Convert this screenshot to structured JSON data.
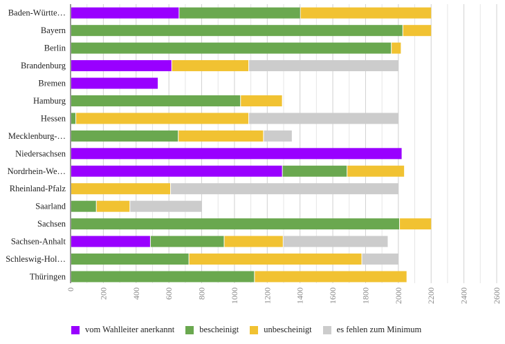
{
  "chart_data": {
    "type": "bar",
    "orientation": "horizontal",
    "stacked": true,
    "categories": [
      "Baden-Württe…",
      "Bayern",
      "Berlin",
      "Brandenburg",
      "Bremen",
      "Hamburg",
      "Hessen",
      "Mecklenburg-…",
      "Niedersachsen",
      "Nordrhein-We…",
      "Rheinland-Pfalz",
      "Saarland",
      "Sachsen",
      "Sachsen-Anhalt",
      "Schleswig-Hol…",
      "Thüringen"
    ],
    "series": [
      {
        "name": "vom Wahlleiter anerkannt",
        "color": "#9900ff",
        "values": [
          660,
          0,
          0,
          615,
          532,
          0,
          0,
          0,
          2020,
          1290,
          0,
          0,
          0,
          485,
          0,
          0
        ]
      },
      {
        "name": "bescheinigt",
        "color": "#6aa84f",
        "values": [
          740,
          2025,
          1955,
          0,
          0,
          1035,
          30,
          655,
          0,
          395,
          0,
          155,
          2005,
          450,
          720,
          1120
        ]
      },
      {
        "name": "unbescheinigt",
        "color": "#f1c232",
        "values": [
          800,
          175,
          60,
          470,
          0,
          255,
          1055,
          520,
          0,
          350,
          608,
          205,
          195,
          360,
          1055,
          930
        ]
      },
      {
        "name": "es fehlen zum Minimum",
        "color": "#cccccc",
        "values": [
          0,
          0,
          0,
          915,
          0,
          0,
          915,
          175,
          0,
          0,
          1392,
          440,
          0,
          640,
          225,
          0
        ]
      }
    ],
    "xlim": [
      0,
      2600
    ],
    "xticks": [
      "0",
      "200",
      "400",
      "600",
      "800",
      "1000",
      "1200",
      "1400",
      "1600",
      "1800",
      "2000",
      "2200",
      "2400",
      "2600"
    ],
    "grid": true,
    "legend_position": "bottom",
    "title": "",
    "xlabel": "",
    "ylabel": ""
  }
}
